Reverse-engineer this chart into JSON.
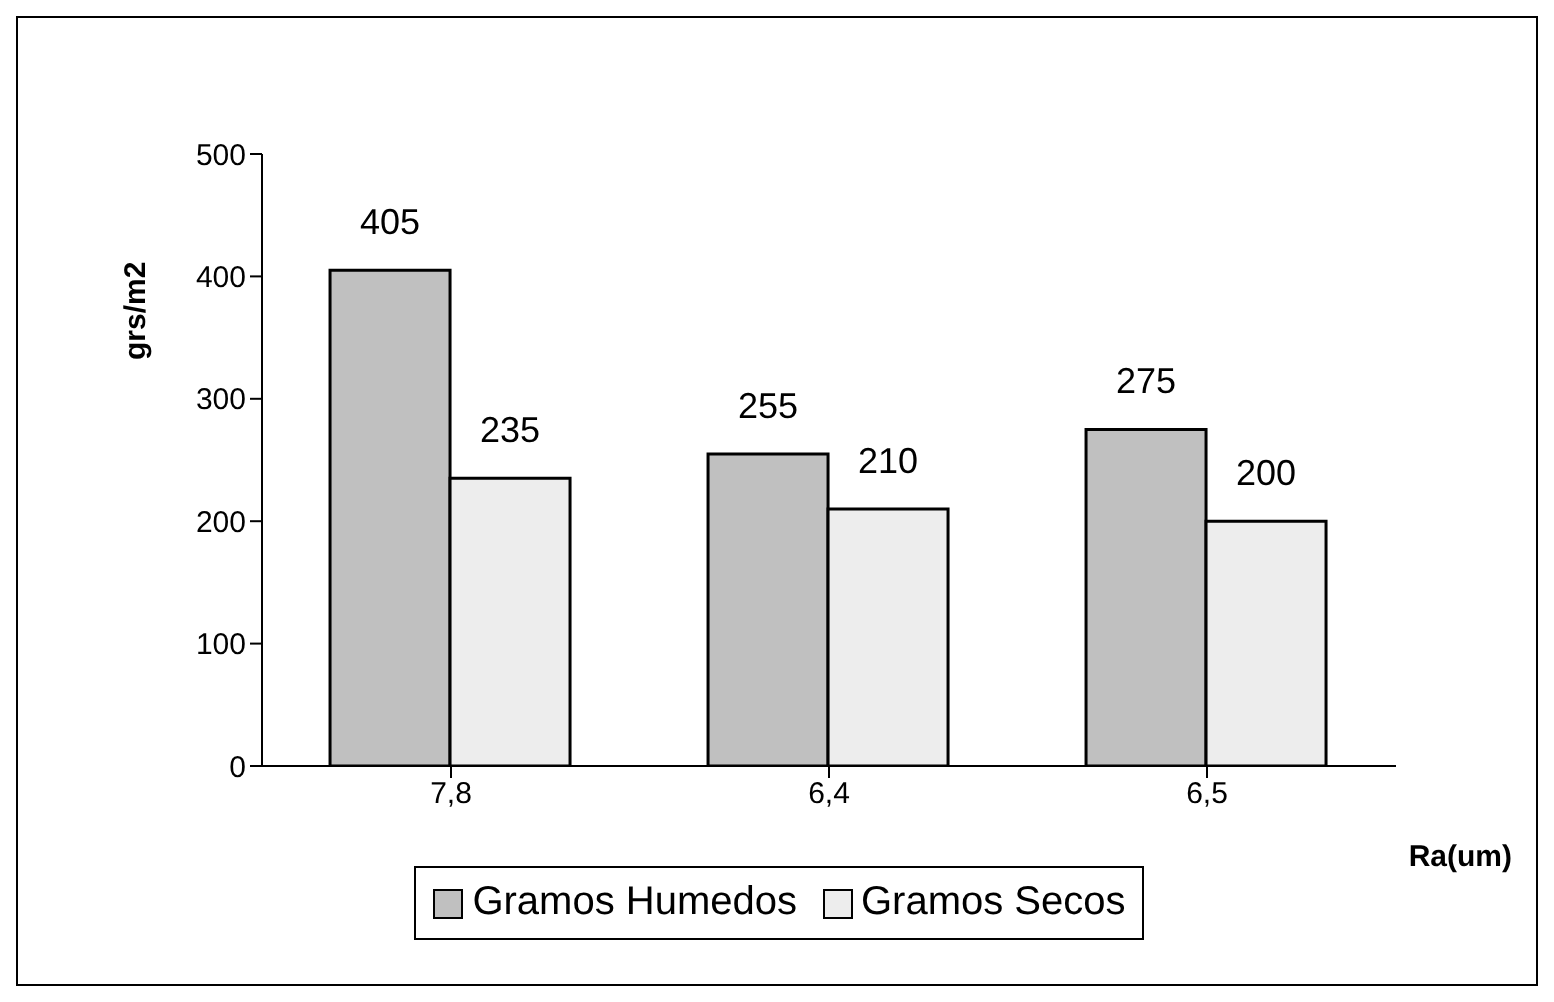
{
  "chart_data": {
    "type": "bar",
    "xlabel": "Ra(um)",
    "ylabel": "grs/m2",
    "categories": [
      "7,8",
      "6,4",
      "6,5"
    ],
    "series": [
      {
        "name": "Gramos Humedos",
        "color": "#c0c0c0",
        "values": [
          405,
          255,
          275
        ]
      },
      {
        "name": "Gramos Secos",
        "color": "#ededed",
        "values": [
          235,
          210,
          200
        ]
      }
    ],
    "ylim": [
      0,
      500
    ],
    "yticks": [
      0,
      100,
      200,
      300,
      400,
      500
    ],
    "grid": false,
    "legend": "bottom",
    "data_labels": true
  }
}
